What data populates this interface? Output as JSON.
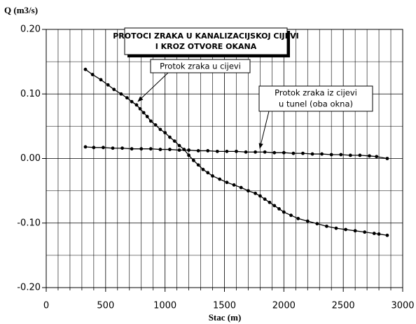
{
  "chart_data": {
    "type": "line",
    "title": [
      "PROTOCI ZRAKA U KANALIZACIJSKOJ CIJEVI",
      "I KROZ OTVORE OKANA"
    ],
    "x_label": "Stac (m)",
    "y_label": "Q (m3/s)",
    "xlim": [
      0,
      3000
    ],
    "xticks": [
      0,
      500,
      1000,
      1500,
      2000,
      2500,
      3000
    ],
    "ylim": [
      -0.2,
      0.2
    ],
    "yticks": [
      {
        "value": -0.2,
        "label": "-0.20"
      },
      {
        "value": -0.1,
        "label": "-0.10"
      },
      {
        "value": 0,
        "label": "0.00"
      },
      {
        "value": 0.1,
        "label": "0.10"
      },
      {
        "value": 0.2,
        "label": "0.20"
      }
    ],
    "grid": true,
    "annotations": [
      {
        "text": [
          "Protok zraka u cijevi"
        ]
      },
      {
        "text": [
          "Protok zraka iz cijevi",
          "u tunel (oba okna)"
        ]
      }
    ],
    "series": [
      {
        "name": "Protok zraka u cijevi",
        "color": "#000000",
        "x": [
          330,
          390,
          460,
          520,
          570,
          630,
          680,
          720,
          760,
          790,
          820,
          850,
          880,
          920,
          960,
          1000,
          1040,
          1080,
          1120,
          1160,
          1200,
          1240,
          1280,
          1320,
          1360,
          1400,
          1460,
          1520,
          1580,
          1640,
          1700,
          1760,
          1800,
          1840,
          1880,
          1920,
          1960,
          2000,
          2060,
          2120,
          2200,
          2280,
          2360,
          2440,
          2520,
          2600,
          2680,
          2760,
          2800,
          2870
        ],
        "values": [
          0.138,
          0.13,
          0.122,
          0.114,
          0.107,
          0.1,
          0.094,
          0.088,
          0.083,
          0.077,
          0.071,
          0.065,
          0.058,
          0.052,
          0.045,
          0.04,
          0.033,
          0.027,
          0.02,
          0.014,
          0.005,
          -0.003,
          -0.01,
          -0.017,
          -0.022,
          -0.027,
          -0.032,
          -0.037,
          -0.041,
          -0.045,
          -0.05,
          -0.054,
          -0.058,
          -0.063,
          -0.068,
          -0.073,
          -0.078,
          -0.083,
          -0.088,
          -0.093,
          -0.097,
          -0.101,
          -0.105,
          -0.108,
          -0.11,
          -0.112,
          -0.114,
          -0.116,
          -0.117,
          -0.119
        ]
      },
      {
        "name": "Protok zraka iz cijevi u tunel (oba okna)",
        "color": "#000000",
        "x": [
          330,
          400,
          480,
          560,
          640,
          720,
          800,
          880,
          960,
          1040,
          1120,
          1200,
          1280,
          1360,
          1440,
          1520,
          1600,
          1680,
          1760,
          1840,
          1920,
          2000,
          2080,
          2160,
          2240,
          2320,
          2400,
          2480,
          2560,
          2640,
          2720,
          2780,
          2870
        ],
        "values": [
          0.018,
          0.017,
          0.017,
          0.016,
          0.016,
          0.015,
          0.015,
          0.015,
          0.014,
          0.014,
          0.013,
          0.013,
          0.012,
          0.012,
          0.011,
          0.011,
          0.011,
          0.01,
          0.01,
          0.01,
          0.009,
          0.009,
          0.008,
          0.008,
          0.007,
          0.007,
          0.006,
          0.006,
          0.005,
          0.005,
          0.004,
          0.003,
          0.0
        ]
      }
    ]
  }
}
